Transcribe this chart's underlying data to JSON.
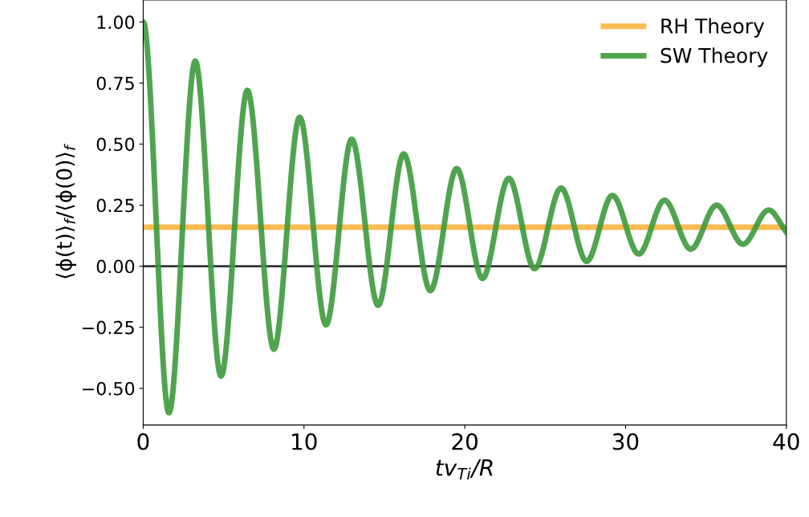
{
  "chart_data": {
    "type": "line",
    "xlabel": "tv$_{Ti}$/R",
    "ylabel": "⟨ϕ(t)⟩$_{f}$/⟨ϕ(0)⟩$_{f}$",
    "series": [
      {
        "name": "RH Theory",
        "color": "#f9b440",
        "x": [
          0,
          40
        ],
        "values": [
          0.16,
          0.16
        ]
      },
      {
        "name": "SW Theory",
        "color": "#3d9a3d",
        "x": [
          0,
          1.6,
          3.24,
          4.84,
          6.48,
          8.13,
          9.73,
          11.37,
          12.97,
          14.61,
          16.2,
          17.86,
          19.5,
          21.1,
          22.74,
          24.34,
          25.99,
          27.58,
          29.18,
          30.82,
          32.42,
          34.06,
          35.66,
          37.3,
          38.9,
          40
        ],
        "values": [
          1.0,
          -0.6,
          0.84,
          -0.45,
          0.72,
          -0.34,
          0.61,
          -0.24,
          0.52,
          -0.16,
          0.46,
          -0.1,
          0.4,
          -0.05,
          0.36,
          -0.01,
          0.32,
          0.02,
          0.29,
          0.05,
          0.27,
          0.07,
          0.25,
          0.09,
          0.23,
          0.14
        ]
      }
    ],
    "ref_lines": [
      {
        "axis": "y",
        "value": 0,
        "color": "#333333"
      }
    ],
    "xlim": [
      0,
      40
    ],
    "xticks": [
      0,
      10,
      20,
      30,
      40
    ],
    "ylim": [
      -0.65,
      1.09
    ],
    "yticks": [
      {
        "value": -0.5,
        "label": "−0.50"
      },
      {
        "value": -0.25,
        "label": "−0.25"
      },
      {
        "value": 0,
        "label": "0.00"
      },
      {
        "value": 0.25,
        "label": "0.25"
      },
      {
        "value": 0.5,
        "label": "0.50"
      },
      {
        "value": 0.75,
        "label": "0.75"
      },
      {
        "value": 1.0,
        "label": "1.00"
      }
    ],
    "grid": false,
    "legend": "top right",
    "marker": "none",
    "line_style": "solid"
  }
}
